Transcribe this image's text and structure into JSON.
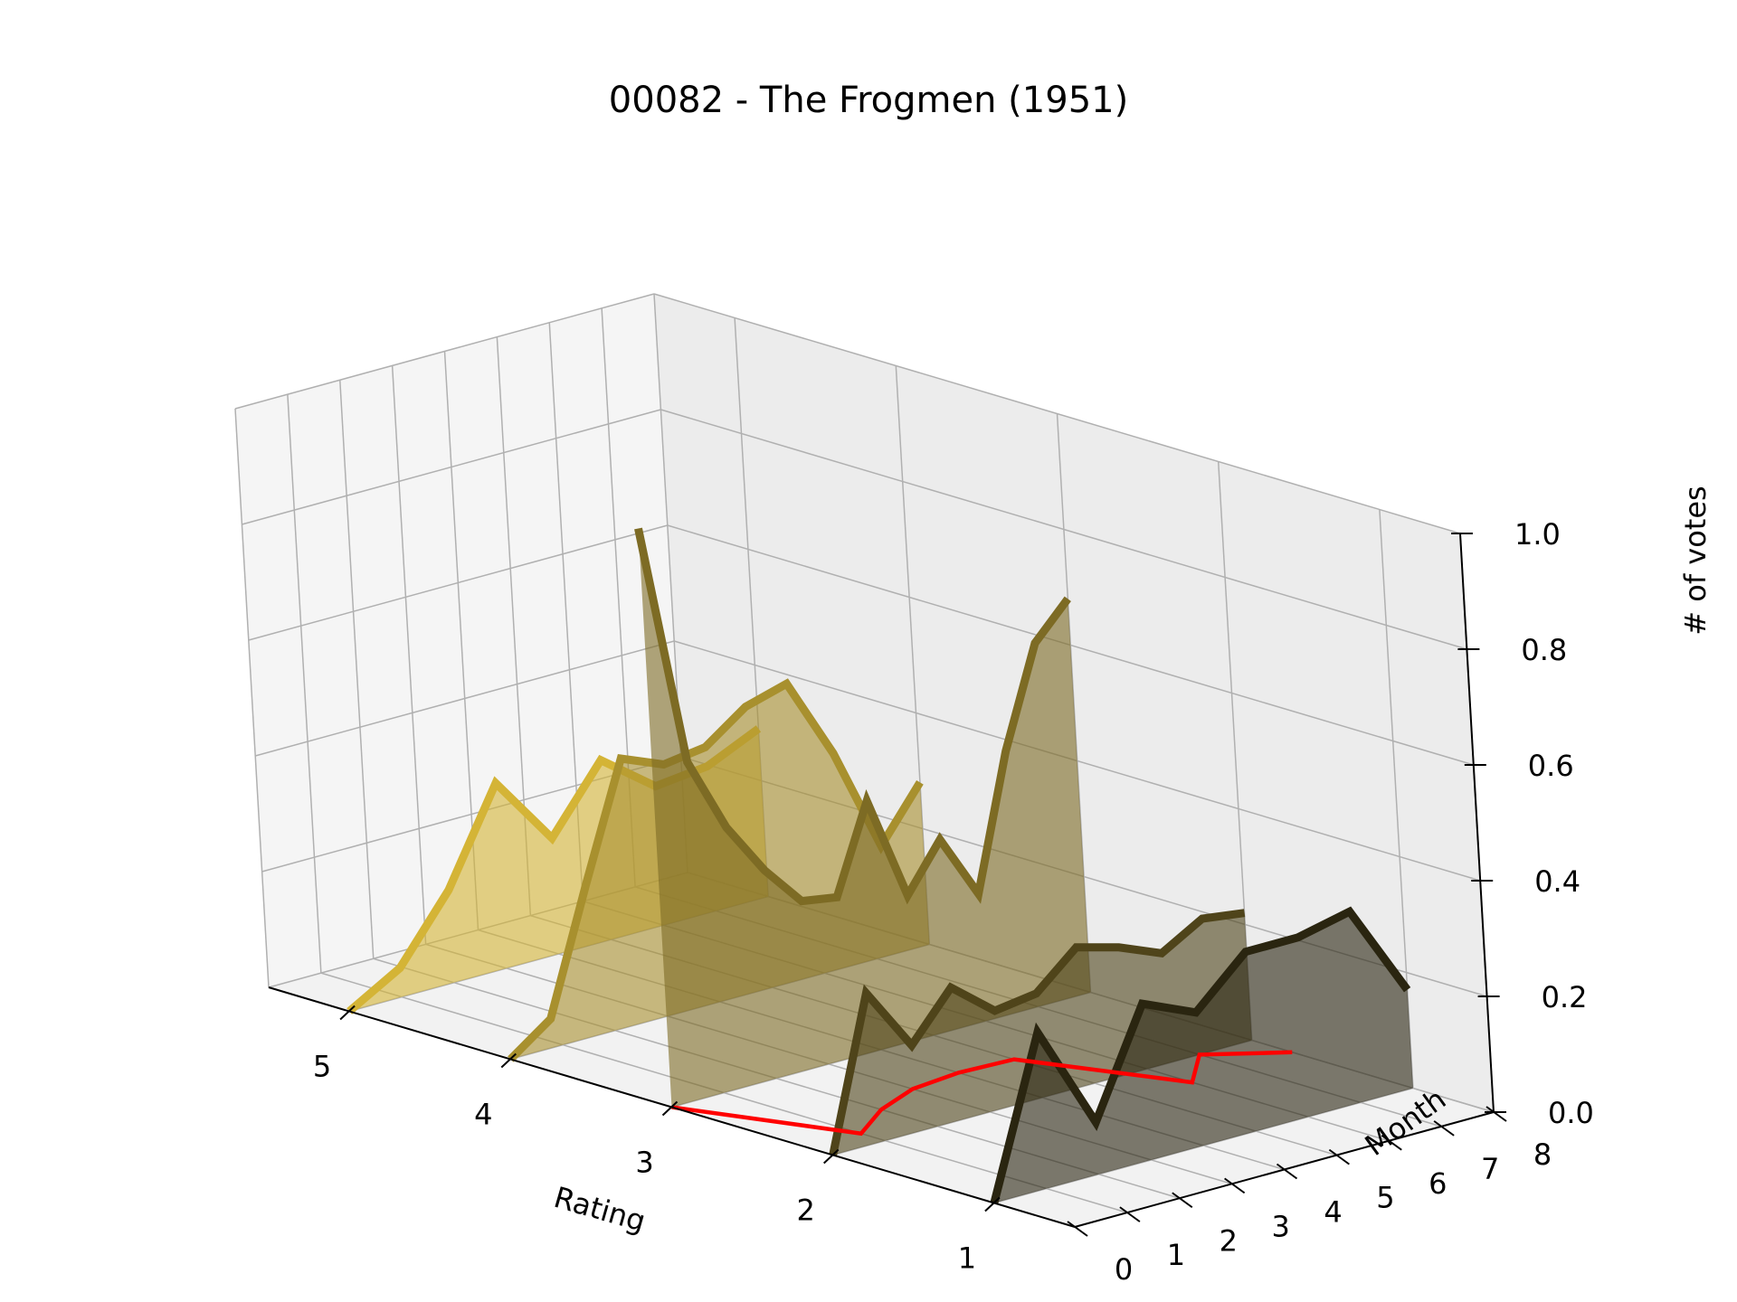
{
  "chart_data": {
    "type": "3d-line-waterfall",
    "title": "00082 - The Frogmen (1951)",
    "xlabel": "Rating",
    "ylabel": "Month",
    "zlabel": "# of votes",
    "x_ticks": [
      "5",
      "4",
      "3",
      "2",
      "1"
    ],
    "y_ticks": [
      "0",
      "1",
      "2",
      "3",
      "4",
      "5",
      "6",
      "7",
      "8"
    ],
    "z_ticks": [
      "0.0",
      "0.2",
      "0.4",
      "0.6",
      "0.8",
      "1.0"
    ],
    "xlim": [
      0.5,
      5.5
    ],
    "ylim": [
      0,
      8
    ],
    "zlim": [
      0,
      1
    ],
    "series": [
      {
        "rating": 5,
        "color": "#d4b436",
        "values": [
          0.0,
          0.05,
          0.16,
          0.32,
          0.2,
          0.31,
          0.24,
          0.25,
          0.29
        ]
      },
      {
        "rating": 4,
        "color": "#a8902e",
        "values": [
          0.0,
          0.05,
          0.26,
          0.46,
          0.43,
          0.44,
          0.49,
          0.51,
          0.37,
          0.19,
          0.28
        ]
      },
      {
        "rating": 3,
        "color": "#7d6b24",
        "values": [
          1.0,
          0.58,
          0.45,
          0.36,
          0.29,
          0.28,
          0.43,
          0.25,
          0.33,
          0.22,
          0.45,
          0.62,
          0.68
        ]
      },
      {
        "rating": 2,
        "color": "#4f441a",
        "values": [
          0.0,
          0.26,
          0.15,
          0.23,
          0.17,
          0.18,
          0.24,
          0.22,
          0.19,
          0.23,
          0.22
        ]
      },
      {
        "rating": 1,
        "color": "#2a2510",
        "values": [
          0.0,
          0.27,
          0.09,
          0.27,
          0.23,
          0.31,
          0.31,
          0.33,
          0.17
        ]
      }
    ],
    "mean_line": {
      "color": "#ff0000",
      "values": [
        3.0,
        2.15,
        2.35,
        2.48,
        2.52,
        2.5,
        1.72,
        2.0,
        1.75
      ]
    }
  }
}
